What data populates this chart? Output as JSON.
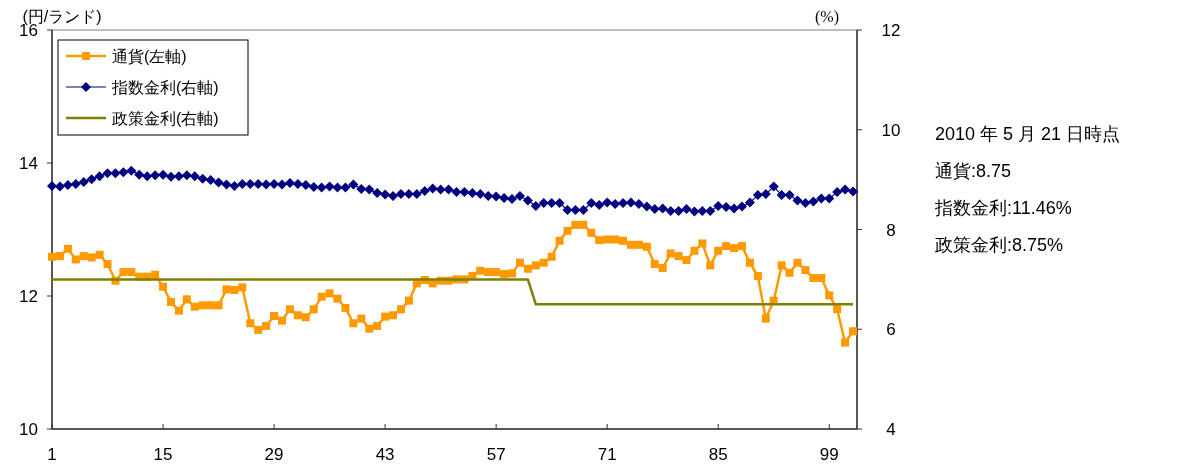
{
  "chart_data": {
    "type": "line",
    "ylabel": "(円/ランド)",
    "y2label": "(%)",
    "categories": [
      "1",
      null,
      null,
      null,
      null,
      null,
      null,
      null,
      null,
      null,
      null,
      null,
      null,
      null,
      "15",
      null,
      null,
      null,
      null,
      null,
      null,
      null,
      null,
      null,
      null,
      null,
      null,
      null,
      "29",
      null,
      null,
      null,
      null,
      null,
      null,
      null,
      null,
      null,
      null,
      null,
      null,
      null,
      "43",
      null,
      null,
      null,
      null,
      null,
      null,
      null,
      null,
      null,
      null,
      null,
      null,
      null,
      "57",
      null,
      null,
      null,
      null,
      null,
      null,
      null,
      null,
      null,
      null,
      null,
      null,
      null,
      "71",
      null,
      null,
      null,
      null,
      null,
      null,
      null,
      null,
      null,
      null,
      null,
      null,
      null,
      "85",
      null,
      null,
      null,
      null,
      null,
      null,
      null,
      null,
      null,
      null,
      null,
      null,
      null,
      "99",
      null,
      null,
      null
    ],
    "ylim": [
      10,
      16
    ],
    "yticks": [
      10,
      12,
      14,
      16
    ],
    "y2lim": [
      4,
      12
    ],
    "y2ticks": [
      4,
      6,
      8,
      10,
      12
    ],
    "legend": "top left",
    "grid": false,
    "annotations": [
      "2010 年 5 月 21 日時点",
      "通貨:8.75",
      "指数金利:11.46%",
      "政策金利:8.75%"
    ],
    "series": [
      {
        "name": "通貨(左軸)",
        "color": "#ff9900",
        "marker": "square",
        "values": [
          12.59,
          12.6,
          12.71,
          12.55,
          12.6,
          12.58,
          12.62,
          12.48,
          12.23,
          12.36,
          12.36,
          12.29,
          12.29,
          12.32,
          12.14,
          11.91,
          11.78,
          11.95,
          11.84,
          11.86,
          11.86,
          11.86,
          12.1,
          12.09,
          12.13,
          11.59,
          11.49,
          11.55,
          11.7,
          11.63,
          11.8,
          11.71,
          11.68,
          11.8,
          11.99,
          12.04,
          11.96,
          11.82,
          11.59,
          11.66,
          11.51,
          11.55,
          11.69,
          11.71,
          11.8,
          11.93,
          12.19,
          12.24,
          12.19,
          12.23,
          12.23,
          12.25,
          12.25,
          12.3,
          12.38,
          12.36,
          12.36,
          12.33,
          12.34,
          12.5,
          12.41,
          12.46,
          12.5,
          12.59,
          12.83,
          12.98,
          13.07,
          13.07,
          12.95,
          12.84,
          12.85,
          12.85,
          12.83,
          12.77,
          12.77,
          12.74,
          12.48,
          12.42,
          12.64,
          12.6,
          12.54,
          12.68,
          12.79,
          12.46,
          12.68,
          12.75,
          12.72,
          12.75,
          12.5,
          12.3,
          11.66,
          11.93,
          12.46,
          12.35,
          12.5,
          12.39,
          12.27,
          12.27,
          12.01,
          11.8,
          11.3,
          11.47
        ]
      },
      {
        "name": "指数金利(右軸)",
        "color": "#000080",
        "marker": "diamond",
        "axis": "y2",
        "values": [
          8.87,
          8.86,
          8.89,
          8.91,
          8.95,
          9.01,
          9.07,
          9.13,
          9.13,
          9.15,
          9.18,
          9.1,
          9.07,
          9.09,
          9.1,
          9.06,
          9.07,
          9.09,
          9.07,
          9.02,
          8.99,
          8.94,
          8.9,
          8.87,
          8.91,
          8.91,
          8.91,
          8.9,
          8.91,
          8.9,
          8.93,
          8.91,
          8.89,
          8.85,
          8.84,
          8.86,
          8.84,
          8.84,
          8.9,
          8.81,
          8.8,
          8.73,
          8.7,
          8.67,
          8.71,
          8.71,
          8.71,
          8.77,
          8.82,
          8.8,
          8.8,
          8.75,
          8.75,
          8.73,
          8.71,
          8.67,
          8.66,
          8.63,
          8.61,
          8.67,
          8.58,
          8.47,
          8.53,
          8.53,
          8.53,
          8.39,
          8.39,
          8.39,
          8.53,
          8.49,
          8.54,
          8.51,
          8.53,
          8.54,
          8.51,
          8.46,
          8.41,
          8.42,
          8.37,
          8.37,
          8.41,
          8.36,
          8.37,
          8.37,
          8.47,
          8.45,
          8.42,
          8.46,
          8.54,
          8.69,
          8.71,
          8.86,
          8.69,
          8.69,
          8.58,
          8.53,
          8.56,
          8.62,
          8.62,
          8.75,
          8.8,
          8.76
        ]
      },
      {
        "name": "政策金利(右軸)",
        "color": "#808000",
        "marker": "none",
        "axis": "y2",
        "values": [
          7.0,
          7.0,
          7.0,
          7.0,
          7.0,
          7.0,
          7.0,
          7.0,
          7.0,
          7.0,
          7.0,
          7.0,
          7.0,
          7.0,
          7.0,
          7.0,
          7.0,
          7.0,
          7.0,
          7.0,
          7.0,
          7.0,
          7.0,
          7.0,
          7.0,
          7.0,
          7.0,
          7.0,
          7.0,
          7.0,
          7.0,
          7.0,
          7.0,
          7.0,
          7.0,
          7.0,
          7.0,
          7.0,
          7.0,
          7.0,
          7.0,
          7.0,
          7.0,
          7.0,
          7.0,
          7.0,
          7.0,
          7.0,
          7.0,
          7.0,
          7.0,
          7.0,
          7.0,
          7.0,
          7.0,
          7.0,
          7.0,
          7.0,
          7.0,
          7.0,
          7.0,
          6.5,
          6.5,
          6.5,
          6.5,
          6.5,
          6.5,
          6.5,
          6.5,
          6.5,
          6.5,
          6.5,
          6.5,
          6.5,
          6.5,
          6.5,
          6.5,
          6.5,
          6.5,
          6.5,
          6.5,
          6.5,
          6.5,
          6.5,
          6.5,
          6.5,
          6.5,
          6.5,
          6.5,
          6.5,
          6.5,
          6.5,
          6.5,
          6.5,
          6.5,
          6.5,
          6.5,
          6.5,
          6.5,
          6.5,
          6.5,
          6.5
        ]
      }
    ]
  }
}
